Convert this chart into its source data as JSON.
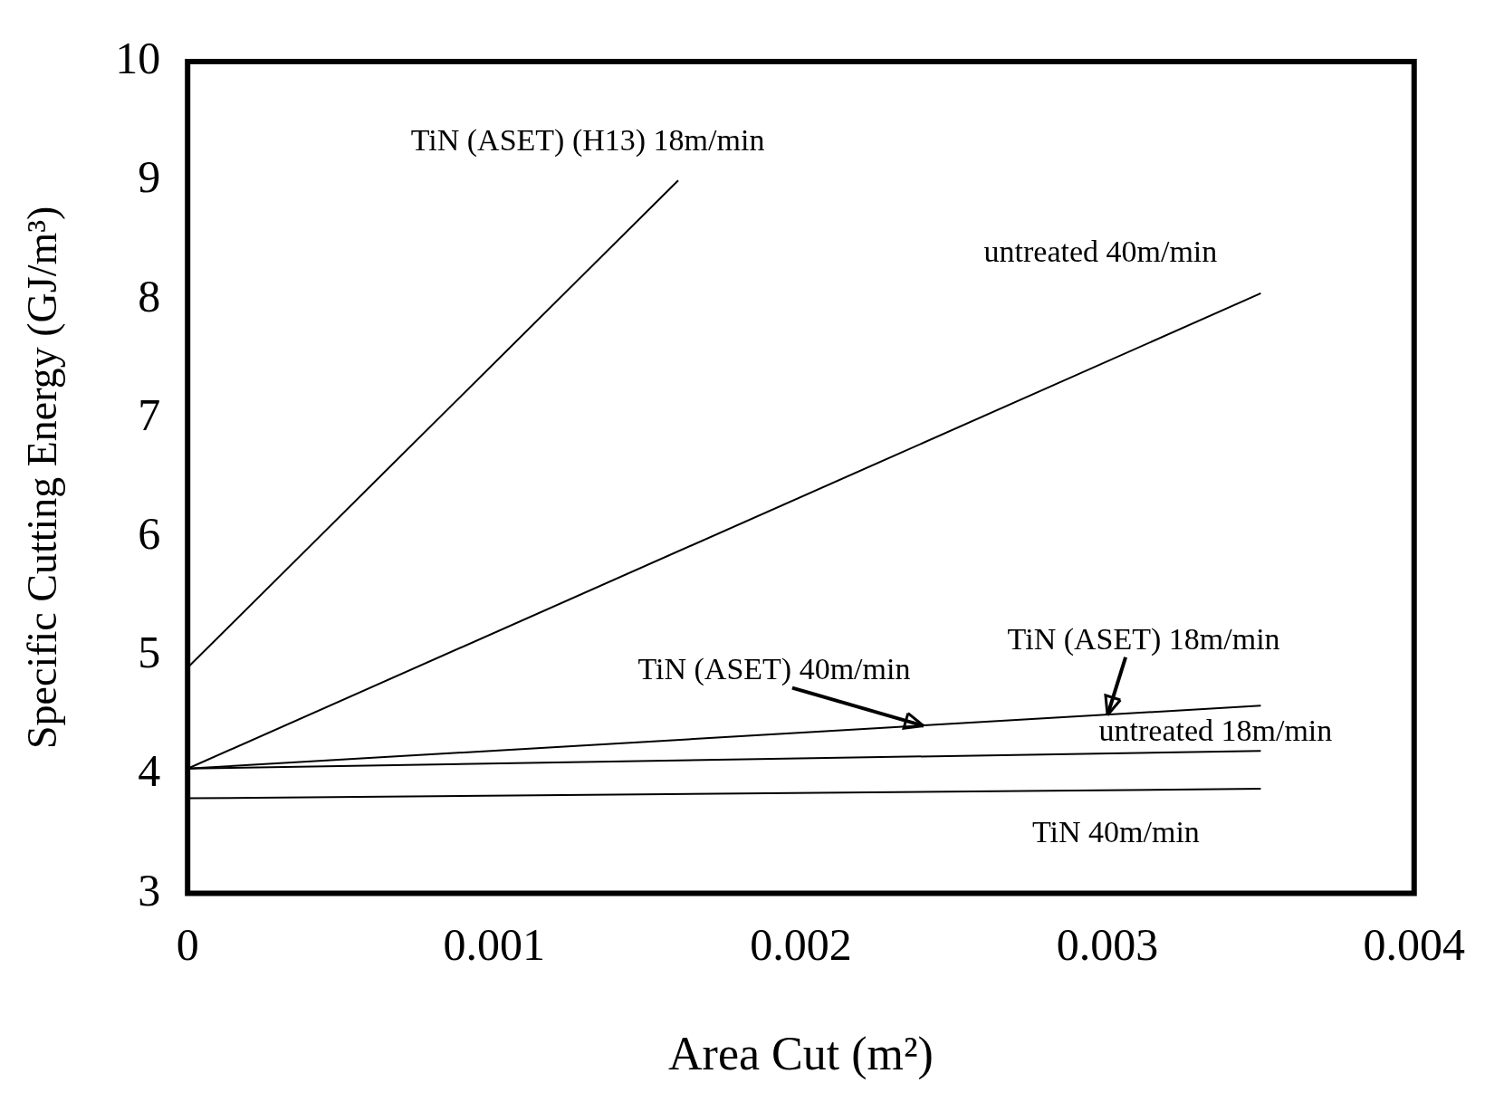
{
  "chart_data": {
    "type": "line",
    "xlabel": "Area Cut (m²)",
    "ylabel": "Specific Cutting Energy (GJ/m³)",
    "xlim": [
      0,
      0.004
    ],
    "xticks": [
      0,
      0.001,
      0.002,
      0.003,
      0.004
    ],
    "ylim": [
      3,
      10
    ],
    "yticks": [
      3,
      4,
      5,
      6,
      7,
      8,
      9,
      10
    ],
    "grid": false,
    "legend": false,
    "marker": "none",
    "line_style": "solid",
    "series": [
      {
        "color": "#000000",
        "x": [
          0,
          0.0016
        ],
        "values": [
          4.9,
          9.0
        ]
      },
      {
        "color": "#000000",
        "x": [
          0,
          0.0035
        ],
        "values": [
          4.05,
          8.05
        ]
      },
      {
        "color": "#000000",
        "x": [
          0,
          0.0035
        ],
        "values": [
          4.05,
          4.58
        ]
      },
      {
        "color": "#000000",
        "x": [
          0,
          0.0035
        ],
        "values": [
          4.05,
          4.2
        ]
      },
      {
        "color": "#000000",
        "x": [
          0,
          0.0035
        ],
        "values": [
          3.8,
          3.88
        ]
      }
    ],
    "annotations": [
      {
        "text": "TiN (ASET) (H13) 18m/min",
        "x": 0.0016,
        "y": 9.0
      },
      {
        "text": "untreated 40m/min",
        "x": 0.0035,
        "y": 8.05
      },
      {
        "text": "TiN (ASET) 40m/min",
        "x": 0.0024,
        "y": 4.41
      },
      {
        "text": "TiN (ASET) 18m/min",
        "x": 0.003,
        "y": 4.5
      },
      {
        "text": "untreated 18m/min",
        "x": 0.0035,
        "y": 4.2
      },
      {
        "text": "TiN 40m/min",
        "x": 0.0035,
        "y": 3.88
      }
    ]
  }
}
